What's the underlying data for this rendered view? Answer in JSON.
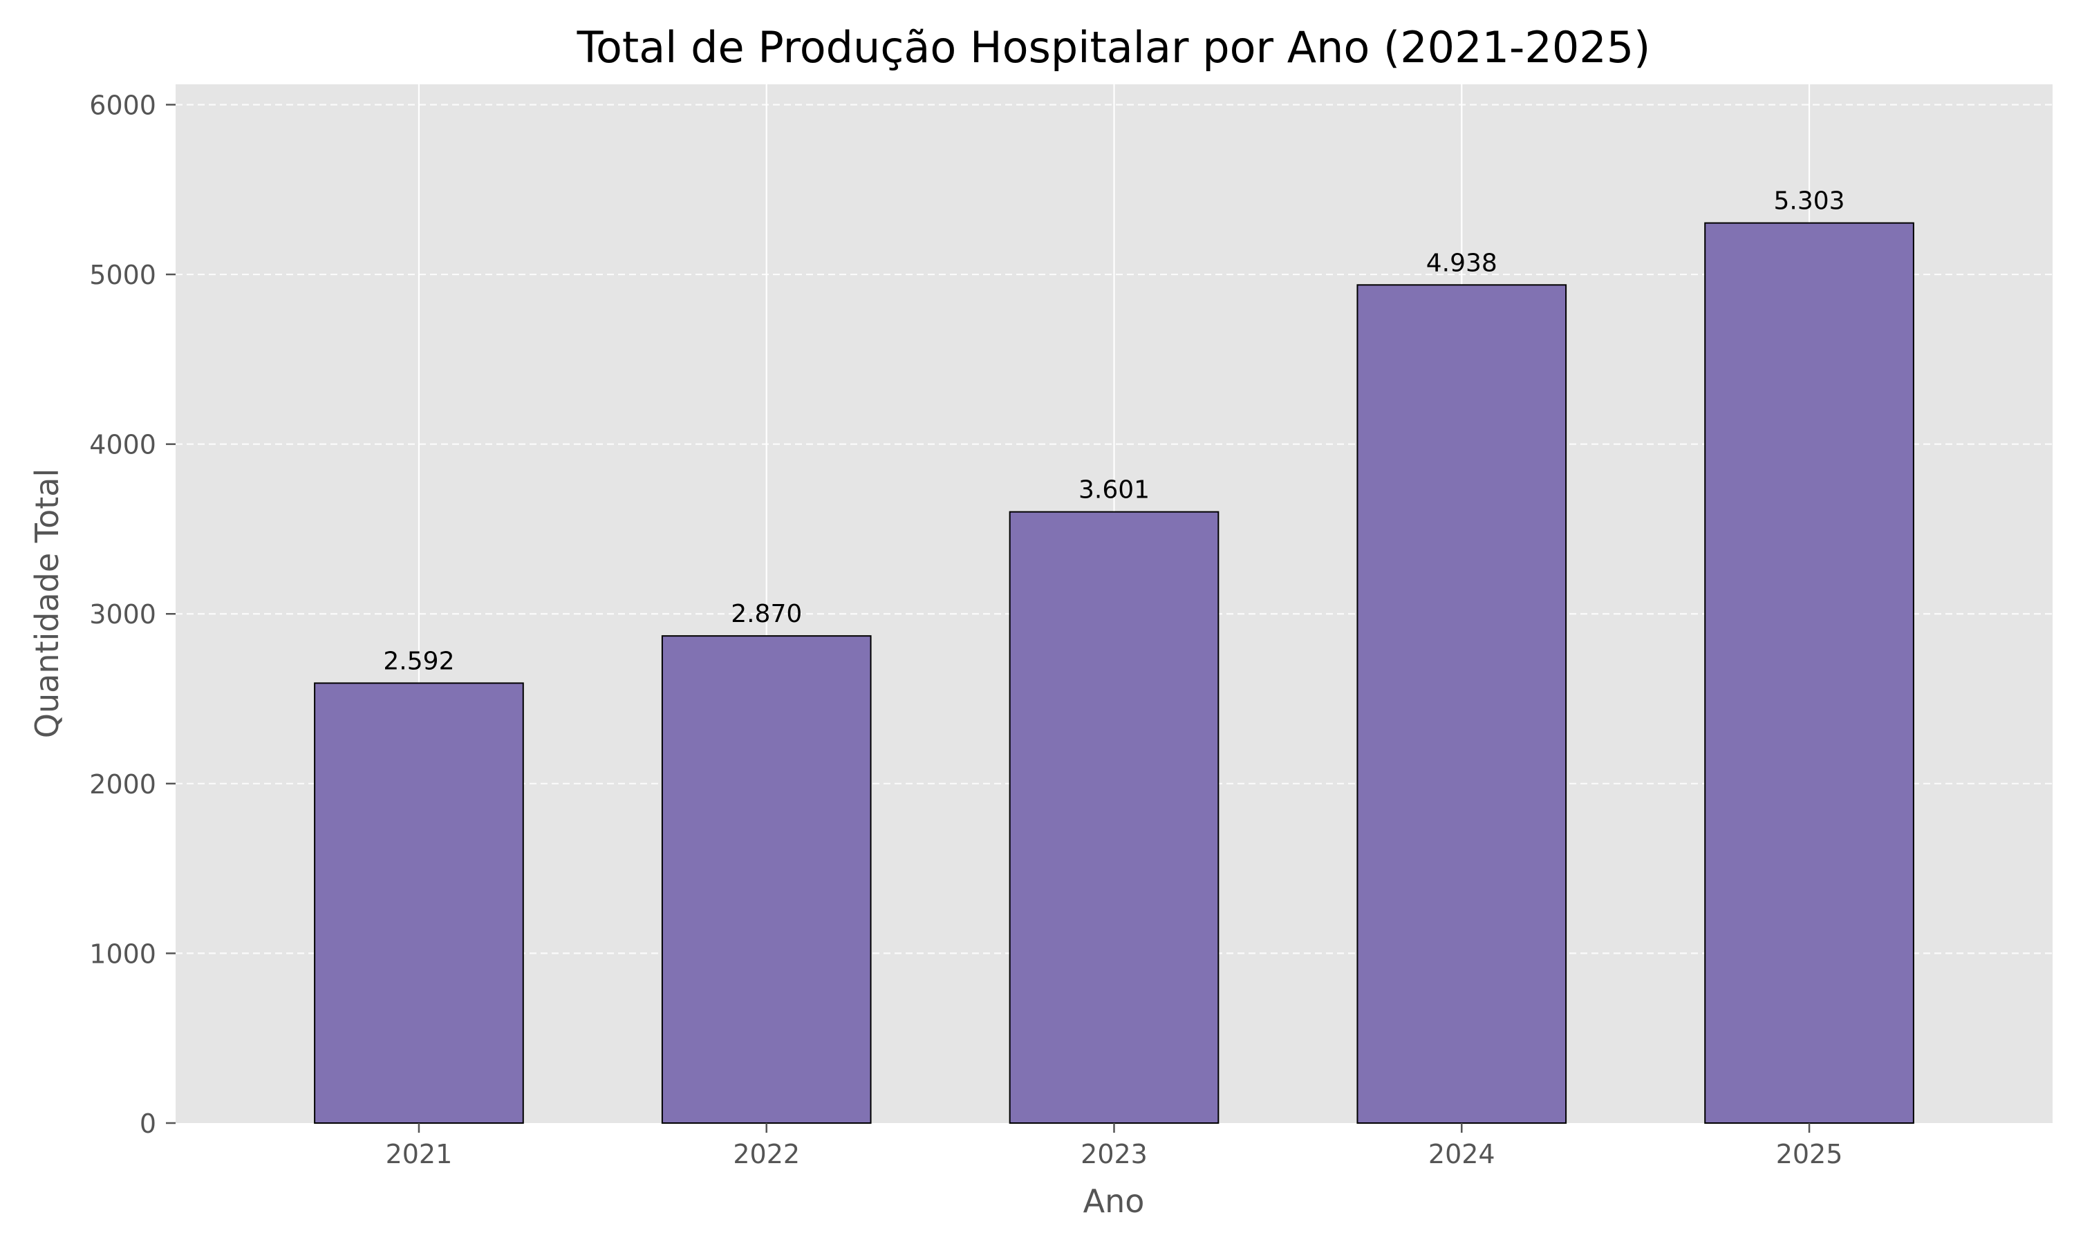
{
  "chart_data": {
    "type": "bar",
    "title": "Total de Produção Hospitalar por Ano (2021-2025)",
    "xlabel": "Ano",
    "ylabel": "Quantidade Total",
    "categories": [
      "2021",
      "2022",
      "2023",
      "2024",
      "2025"
    ],
    "values": [
      2592,
      2870,
      3601,
      4938,
      5303
    ],
    "value_labels": [
      "2.592",
      "2.870",
      "3.601",
      "4.938",
      "5.303"
    ],
    "ylim": [
      0,
      6120
    ],
    "yticks": [
      0,
      1000,
      2000,
      3000,
      4000,
      5000,
      6000
    ],
    "ytick_labels": [
      "0",
      "1000",
      "2000",
      "3000",
      "4000",
      "5000",
      "6000"
    ],
    "grid": true,
    "legend": "none",
    "colors": {
      "bar": "#8172b2",
      "bar_edge": "#000000",
      "plot_background": "#e5e5e5",
      "grid": "#ffffff",
      "text": "#555555",
      "title": "#000000"
    }
  }
}
